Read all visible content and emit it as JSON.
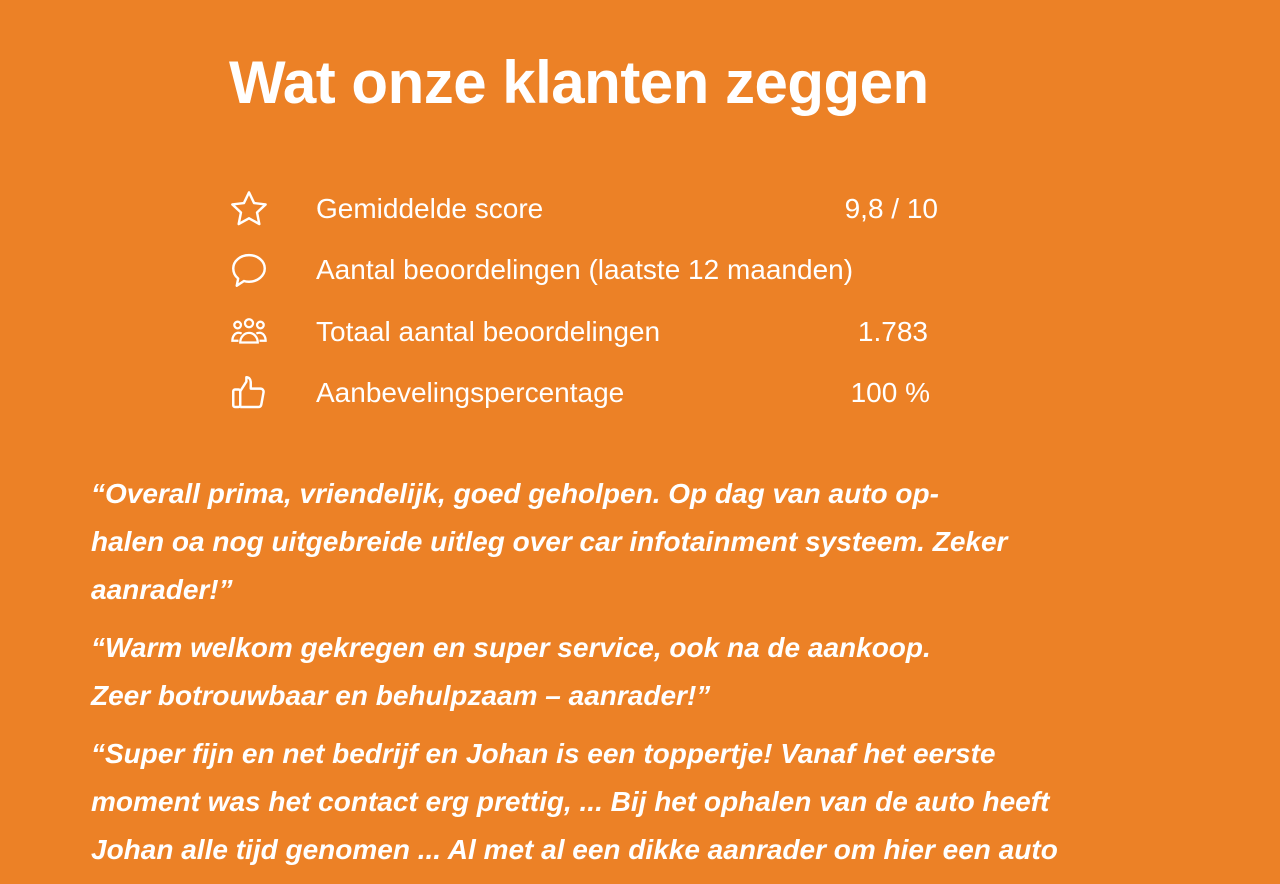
{
  "header": {
    "title": "Wat onze klanten zeggen"
  },
  "stats": [
    {
      "icon": "star-icon",
      "label": "Gemiddelde score",
      "value": "9,8 / 10"
    },
    {
      "icon": "chat-bubble-icon",
      "label": "Aantal beoordelingen (laatste 12 maanden)",
      "value": ""
    },
    {
      "icon": "users-icon",
      "label": "Totaal aantal beoordelingen",
      "value": "1.783"
    },
    {
      "icon": "thumbs-up-icon",
      "label": "Aanbevelingspercentage",
      "value": "100 %"
    }
  ],
  "quotes": [
    {
      "lines": [
        "“Overall prima, vriendelijk, goed geholpen. Op dag van auto op-",
        "halen oa nog uitgebreide uitleg over car infotainment systeem.  Zeker",
        "aanrader!”"
      ]
    },
    {
      "lines": [
        "“Warm welkom gekregen en super service, ook na de aankoop.",
        "Zeer botrouwbaar en behulpzaam – aanrader!”"
      ]
    },
    {
      "lines": [
        "“Super fijn en net bedrijf en Johan is een toppertje! Vanaf het eerste",
        "moment was het contact erg prettig, ... Bij het ophalen van de auto heeft",
        "Johan alle tijd genomen ... Al met al een dikke aanrader om hier een auto"
      ]
    }
  ],
  "colors": {
    "background": "#EC8126",
    "text": "#FFFFFF"
  }
}
